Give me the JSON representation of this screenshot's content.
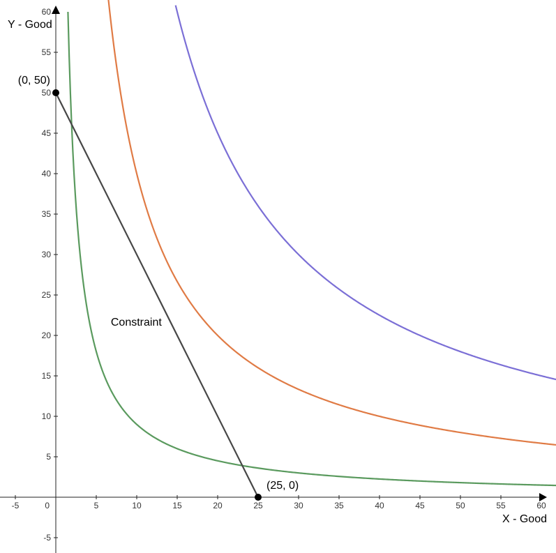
{
  "chart_data": {
    "type": "line",
    "xlabel": "X - Good",
    "ylabel": "Y - Good",
    "xlim": [
      -6.8,
      62
    ],
    "ylim": [
      -6.8,
      61.5
    ],
    "x_ticks": [
      -5,
      5,
      10,
      15,
      20,
      25,
      30,
      35,
      40,
      45,
      50,
      55,
      60
    ],
    "y_ticks": [
      -5,
      5,
      10,
      15,
      20,
      25,
      30,
      35,
      40,
      45,
      50,
      55,
      60
    ],
    "origin_label": "0",
    "grid": false,
    "series": [
      {
        "kind": "indifference-curve",
        "color": "#5a9a5e",
        "k": 90,
        "x_min": 1.5,
        "x_max": 62
      },
      {
        "kind": "indifference-curve",
        "color": "#e07b45",
        "k": 400,
        "x_min": 6.5,
        "x_max": 62
      },
      {
        "kind": "indifference-curve",
        "color": "#7b6fd6",
        "k": 900,
        "x_min": 14.8,
        "x_max": 62
      },
      {
        "name": "Constraint",
        "kind": "budget-line",
        "color": "#474747",
        "x": [
          0,
          25
        ],
        "y": [
          50,
          0
        ]
      }
    ],
    "points": [
      {
        "label": "(0, 50)",
        "x": 0,
        "y": 50
      },
      {
        "label": "(25, 0)",
        "x": 25,
        "y": 0
      }
    ],
    "annotations": [
      {
        "text": "Constraint",
        "x": 6.8,
        "y": 21.2
      }
    ]
  }
}
